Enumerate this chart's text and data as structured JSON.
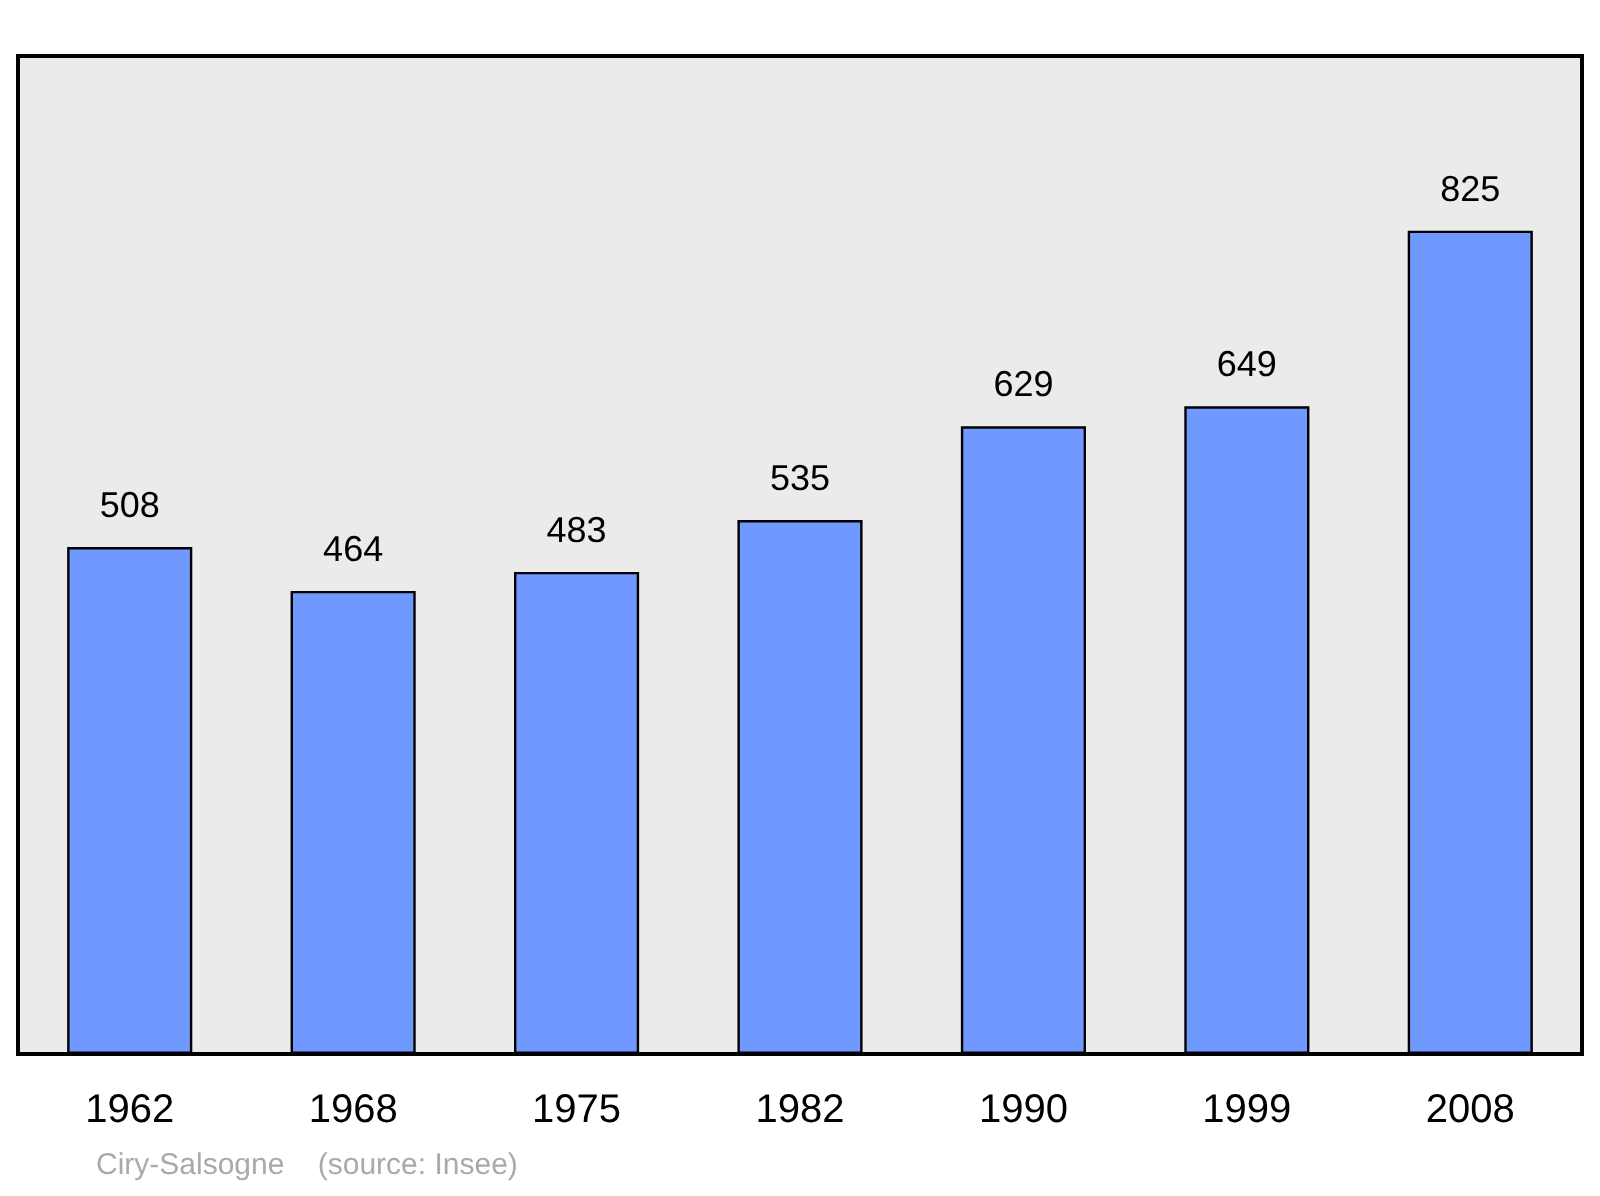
{
  "chart_data": {
    "type": "bar",
    "categories": [
      "1962",
      "1968",
      "1975",
      "1982",
      "1990",
      "1999",
      "2008"
    ],
    "values": [
      508,
      464,
      483,
      535,
      629,
      649,
      825
    ],
    "color": "#7099ff",
    "data_labels": true,
    "annotations": [
      "Ciry-Salsogne    (source: Insee)"
    ]
  }
}
